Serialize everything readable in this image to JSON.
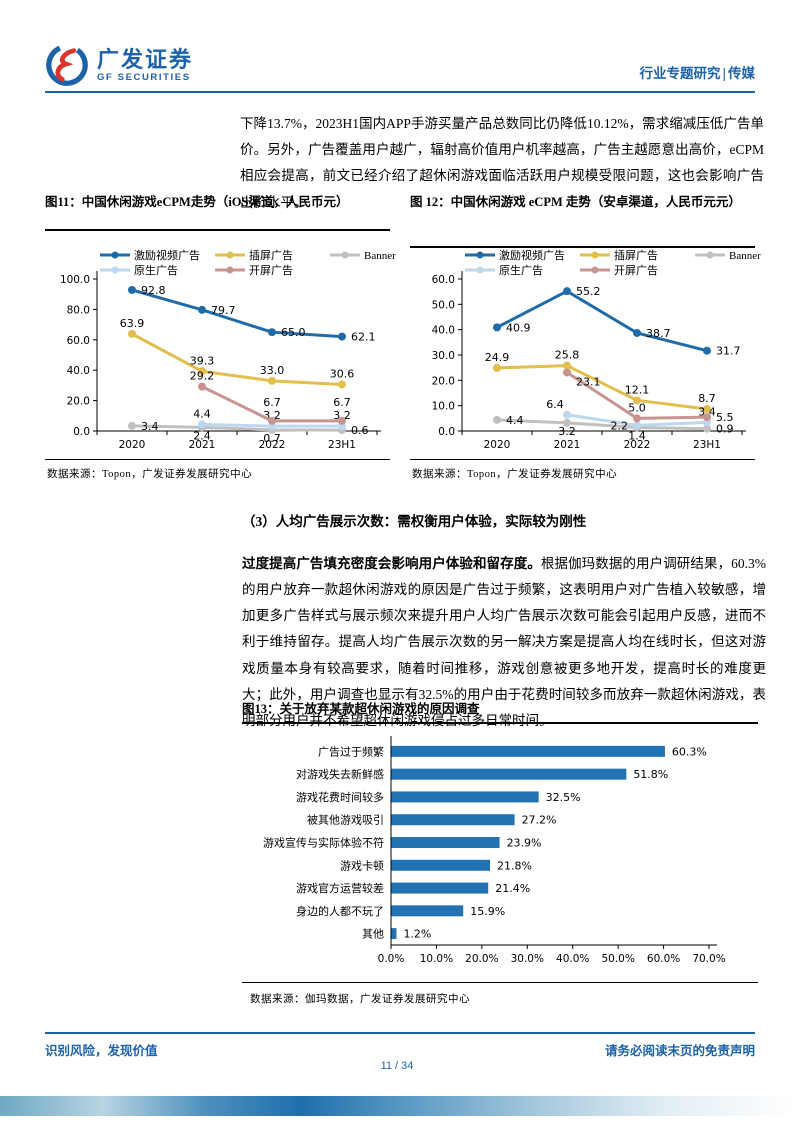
{
  "header": {
    "brand_cn": "广发证券",
    "brand_en": "GF SECURITIES",
    "doc_type": "行业专题研究",
    "separator": "|",
    "industry": "传媒",
    "accent_color": "#1B62A8"
  },
  "intro_paragraph": "下降13.7%，2023H1国内APP手游买量产品总数同比仍降低10.12%，需求缩减压低广告单价。另外，广告覆盖用户越广，辐射高价值用户机率越高，广告主越愿意出高价，eCPM相应会提高，前文已经介绍了超休闲游戏面临活跃用户规模受限问题，这也会影响广告出价水平。",
  "figure11": {
    "title": "图11：中国休闲游戏eCPM走势（iOS渠道，人民币元）",
    "source": "数据来源：Topon，广发证券发展研究中心"
  },
  "figure12": {
    "title": "图 12：中国休闲游戏 eCPM 走势（安卓渠道，人民币元元）",
    "source": "数据来源：Topon，广发证券发展研究中心"
  },
  "section3": {
    "heading": "（3）人均广告展示次数：需权衡用户体验，实际较为刚性",
    "body_bold": "过度提高广告填充密度会影响用户体验和留存度。",
    "body_rest": "根据伽玛数据的用户调研结果，60.3%的用户放弃一款超休闲游戏的原因是广告过于频繁，这表明用户对广告植入较敏感，增加更多广告样式与展示频次来提升用户人均广告展示次数可能会引起用户反感，进而不利于维持留存。提高人均广告展示次数的另一解决方案是提高人均在线时长，但这对游戏质量本身有较高要求，随着时间推移，游戏创意被更多地开发，提高时长的难度更大；此外，用户调查也显示有32.5%的用户由于花费时间较多而放弃一款超休闲游戏，表明部分用户并不希望超休闲游戏侵占过多日常时间。"
  },
  "figure13": {
    "title": "图13：关于放弃某款超休闲游戏的原因调查",
    "source": "数据来源：伽玛数据，广发证券发展研究中心"
  },
  "footer": {
    "left": "识别风险，发现价值",
    "right": "请务必阅读末页的免责声明",
    "page": "11 / 34"
  },
  "chart_data": [
    {
      "id": "ecpm-ios",
      "type": "line",
      "title": "中国休闲游戏eCPM走势（iOS渠道，人民币元）",
      "categories": [
        "2020",
        "2021",
        "2022",
        "23H1"
      ],
      "series": [
        {
          "name": "激励视频广告",
          "color": "#1F6BA8",
          "values": [
            92.8,
            79.7,
            65.0,
            62.1
          ],
          "lpos": [
            "r",
            "r",
            "r",
            "r"
          ]
        },
        {
          "name": "插屏广告",
          "color": "#E2BE4C",
          "values": [
            63.9,
            39.3,
            33.0,
            30.6
          ],
          "lpos": [
            "a",
            "a",
            "a",
            "a"
          ]
        },
        {
          "name": "Banner",
          "color": "#C0C0C0",
          "values": [
            3.4,
            2.4,
            0.7,
            0.6
          ],
          "lpos": [
            "r",
            "b",
            "b",
            "r"
          ]
        },
        {
          "name": "原生广告",
          "color": "#BDD7EE",
          "values": [
            null,
            4.4,
            3.2,
            3.2
          ],
          "lpos": [
            "a",
            "a",
            "a",
            "a"
          ]
        },
        {
          "name": "开屏广告",
          "color": "#C79490",
          "values": [
            null,
            29.2,
            6.7,
            6.7
          ],
          "lpos": [
            "a",
            "a",
            "aa",
            "aa"
          ]
        }
      ],
      "ylim": [
        0,
        100
      ],
      "ytick_step": 20,
      "legend_rows": [
        [
          0,
          1,
          2
        ],
        [
          3,
          4
        ]
      ],
      "legend_position": "top",
      "grid": false
    },
    {
      "id": "ecpm-android",
      "type": "line",
      "title": "中国休闲游戏 eCPM 走势（安卓渠道，人民币元）",
      "categories": [
        "2020",
        "2021",
        "2022",
        "23H1"
      ],
      "series": [
        {
          "name": "激励视频广告",
          "color": "#1F6BA8",
          "values": [
            40.9,
            55.2,
            38.7,
            31.7
          ],
          "lpos": [
            "r",
            "r",
            "r",
            "r"
          ]
        },
        {
          "name": "插屏广告",
          "color": "#E2BE4C",
          "values": [
            24.9,
            25.8,
            12.1,
            8.7
          ],
          "lpos": [
            "a",
            "a",
            "a",
            "a"
          ]
        },
        {
          "name": "Banner",
          "color": "#C0C0C0",
          "values": [
            4.4,
            3.2,
            1.4,
            0.9
          ],
          "lpos": [
            "r",
            "b",
            "b",
            "r"
          ]
        },
        {
          "name": "原生广告",
          "color": "#BDD7EE",
          "values": [
            null,
            6.4,
            2.2,
            3.4
          ],
          "lpos": [
            "a",
            "al",
            "l",
            "a"
          ]
        },
        {
          "name": "开屏广告",
          "color": "#C79490",
          "values": [
            null,
            23.1,
            5.0,
            5.5
          ],
          "lpos": [
            "a",
            "rb",
            "a",
            "r"
          ]
        }
      ],
      "ylim": [
        0,
        60
      ],
      "ytick_step": 10,
      "legend_rows": [
        [
          0,
          1,
          2
        ],
        [
          3,
          4
        ]
      ],
      "legend_position": "top",
      "grid": false
    },
    {
      "id": "abandon-reasons",
      "type": "bar",
      "title": "关于放弃某款超休闲游戏的原因调查",
      "categories": [
        "广告过于频繁",
        "对游戏失去新鲜感",
        "游戏花费时间较多",
        "被其他游戏吸引",
        "游戏宣传与实际体验不符",
        "游戏卡顿",
        "游戏官方运营较差",
        "身边的人都不玩了",
        "其他"
      ],
      "values": [
        60.3,
        51.8,
        32.5,
        27.2,
        23.9,
        21.8,
        21.4,
        15.9,
        1.2
      ],
      "xlim": [
        0,
        70
      ],
      "xtick_step": 10,
      "bar_color": "#2173B3",
      "grid": false
    }
  ]
}
